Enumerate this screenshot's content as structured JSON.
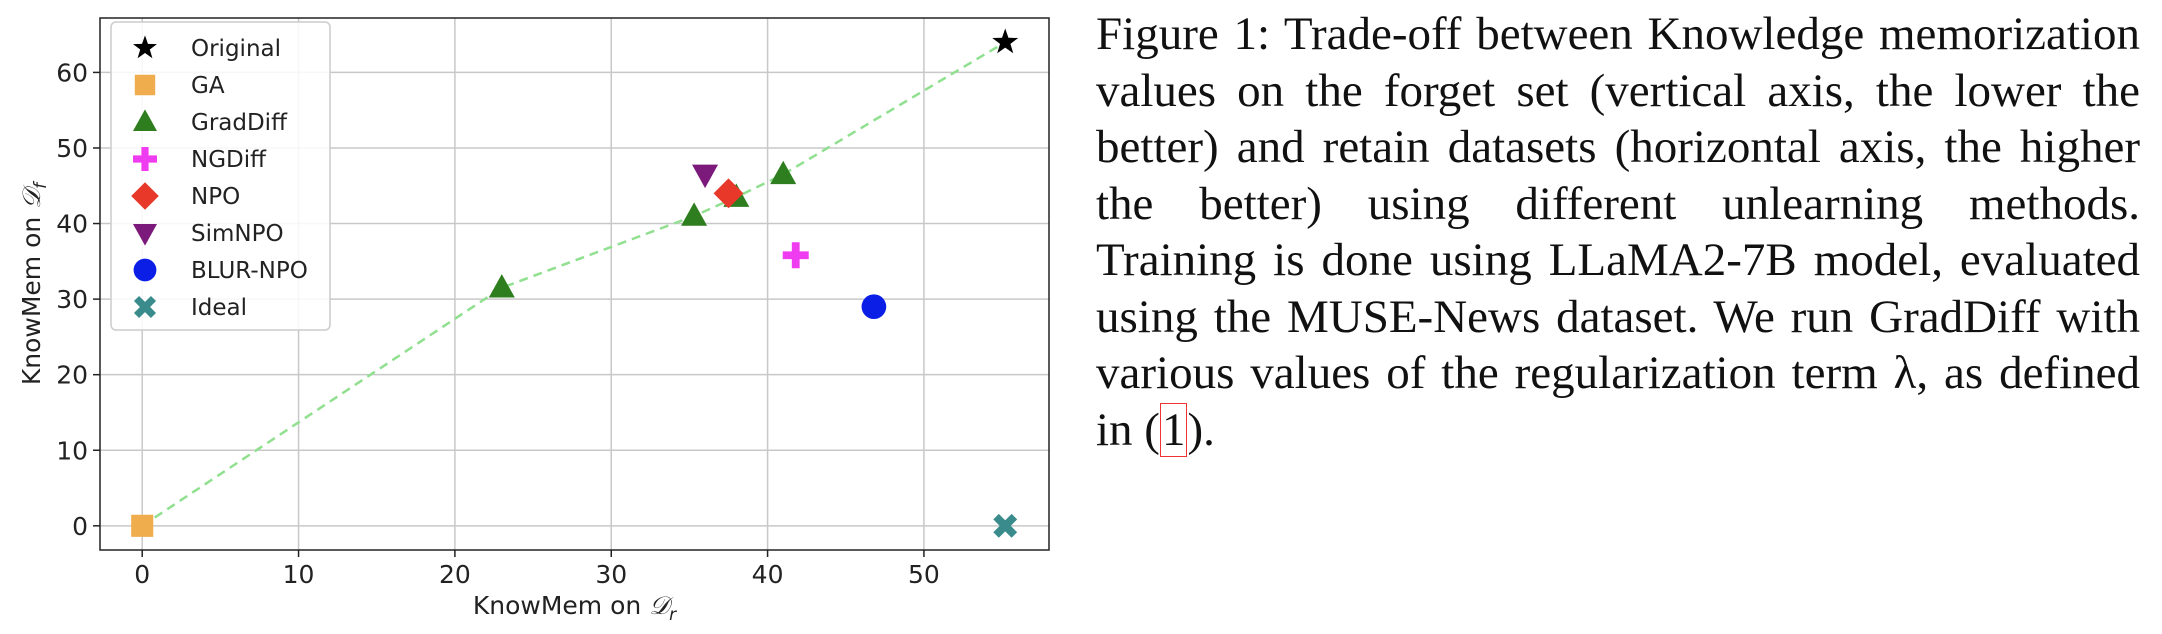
{
  "chart_data": {
    "type": "scatter",
    "xlabel": [
      "KnowMem on ",
      "𝒟",
      "r"
    ],
    "ylabel": [
      "KnowMem on ",
      "𝒟",
      "f"
    ],
    "xlim": [
      -2.7,
      58
    ],
    "ylim": [
      -3.2,
      67.2
    ],
    "xticks": [
      0,
      10,
      20,
      30,
      40,
      50
    ],
    "yticks": [
      0,
      10,
      20,
      30,
      40,
      50,
      60
    ],
    "grid": true,
    "legend": "upper left",
    "series": [
      {
        "name": "Original",
        "color": "#000000",
        "marker": "star",
        "x": [
          55.2
        ],
        "y": [
          64
        ]
      },
      {
        "name": "GA",
        "color": "#f0ad4e",
        "marker": "square",
        "x": [
          0
        ],
        "y": [
          0
        ]
      },
      {
        "name": "GradDiff",
        "color": "#2e7d1e",
        "marker": "triangle-up",
        "x": [
          23,
          35.3,
          38,
          41
        ],
        "y": [
          31.5,
          41,
          43.5,
          46.5
        ]
      },
      {
        "name": "NGDiff",
        "color": "#f03cf0",
        "marker": "plus",
        "x": [
          41.8
        ],
        "y": [
          35.8
        ]
      },
      {
        "name": "NPO",
        "color": "#e8382a",
        "marker": "diamond",
        "x": [
          37.5
        ],
        "y": [
          44
        ]
      },
      {
        "name": "SimNPO",
        "color": "#7b1a7b",
        "marker": "triangle-down",
        "x": [
          36
        ],
        "y": [
          46.5
        ]
      },
      {
        "name": "BLUR-NPO",
        "color": "#0a1ee6",
        "marker": "circle",
        "x": [
          46.8
        ],
        "y": [
          29
        ]
      },
      {
        "name": "Ideal",
        "color": "#3a8c8c",
        "marker": "x",
        "x": [
          55.2
        ],
        "y": [
          0
        ]
      }
    ],
    "trend_color": "#90e090"
  },
  "caption": {
    "text": "Figure 1: Trade-off between Knowledge memorization values on the forget set (vertical axis, the lower the better) and retain datasets (horizontal axis, the higher the better) using different unlearning methods. Training is done using LLaMA2-7B model, evaluated using the MUSE-News dataset. We run GradDiff with various values of the regularization term λ, as defined in (",
    "ref": "1",
    "end": ")."
  }
}
